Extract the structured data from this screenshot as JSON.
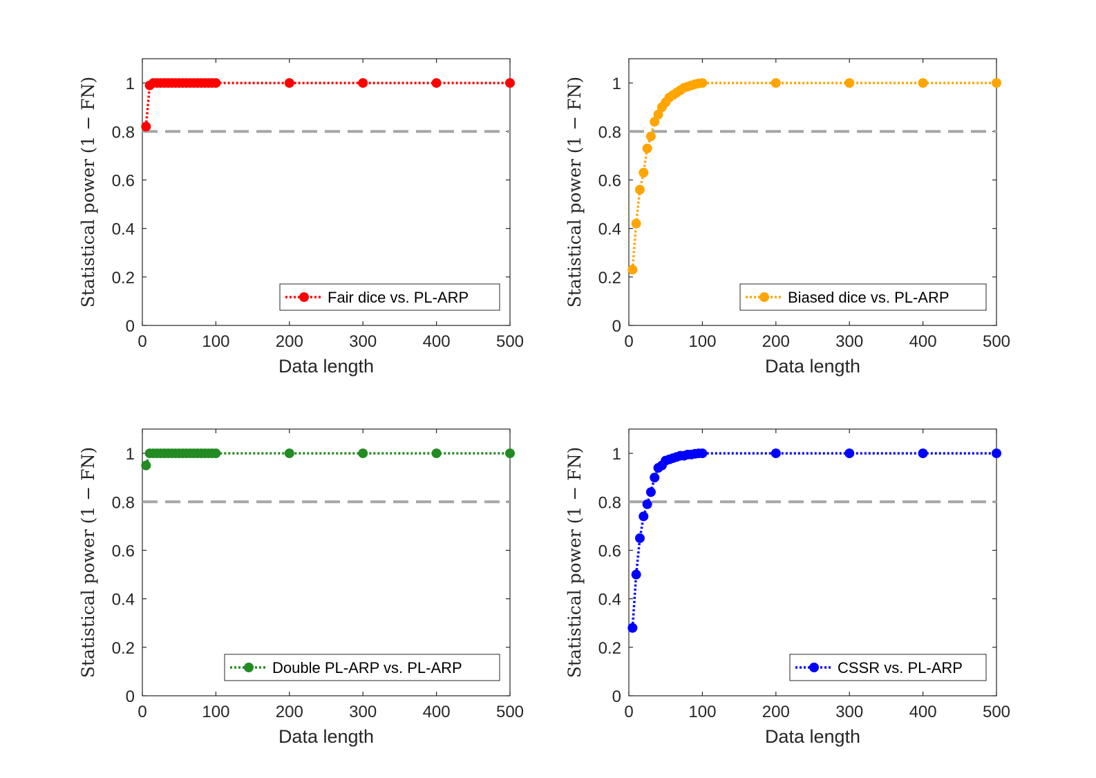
{
  "chart_data": [
    {
      "type": "line",
      "xlabel": "Data length",
      "ylabel": "Statistical power (1 − FN)",
      "xlim": [
        0,
        500
      ],
      "ylim": [
        0,
        1.1
      ],
      "xticks": [
        "0",
        "100",
        "200",
        "300",
        "400",
        "500"
      ],
      "yticks": [
        "0",
        "0.2",
        "0.4",
        "0.6",
        "0.8",
        "1"
      ],
      "threshold": 0.8,
      "legend_position": "bottom-right",
      "series": [
        {
          "name": "Fair dice vs. PL-ARP",
          "color": "#ff0000",
          "x": [
            5,
            10,
            15,
            20,
            25,
            30,
            35,
            40,
            45,
            50,
            55,
            60,
            65,
            70,
            75,
            80,
            85,
            90,
            95,
            100,
            200,
            300,
            400,
            500
          ],
          "y": [
            0.82,
            0.99,
            1,
            1,
            1,
            1,
            1,
            1,
            1,
            1,
            1,
            1,
            1,
            1,
            1,
            1,
            1,
            1,
            1,
            1,
            1,
            1,
            1,
            1
          ]
        }
      ]
    },
    {
      "type": "line",
      "xlabel": "Data length",
      "ylabel": "Statistical power (1 − FN)",
      "xlim": [
        0,
        500
      ],
      "ylim": [
        0,
        1.1
      ],
      "xticks": [
        "0",
        "100",
        "200",
        "300",
        "400",
        "500"
      ],
      "yticks": [
        "0",
        "0.2",
        "0.4",
        "0.6",
        "0.8",
        "1"
      ],
      "threshold": 0.8,
      "legend_position": "bottom-right",
      "series": [
        {
          "name": "Biased dice vs. PL-ARP",
          "color": "#ffa500",
          "x": [
            5,
            10,
            15,
            20,
            25,
            30,
            35,
            40,
            45,
            50,
            55,
            60,
            65,
            70,
            75,
            80,
            85,
            90,
            95,
            100,
            200,
            300,
            400,
            500
          ],
          "y": [
            0.23,
            0.42,
            0.56,
            0.63,
            0.73,
            0.78,
            0.84,
            0.87,
            0.9,
            0.92,
            0.94,
            0.95,
            0.96,
            0.97,
            0.98,
            0.985,
            0.99,
            0.995,
            0.998,
            1,
            1,
            1,
            1,
            1
          ]
        }
      ]
    },
    {
      "type": "line",
      "xlabel": "Data length",
      "ylabel": "Statistical power (1 − FN)",
      "xlim": [
        0,
        500
      ],
      "ylim": [
        0,
        1.1
      ],
      "xticks": [
        "0",
        "100",
        "200",
        "300",
        "400",
        "500"
      ],
      "yticks": [
        "0",
        "0.2",
        "0.4",
        "0.6",
        "0.8",
        "1"
      ],
      "threshold": 0.8,
      "legend_position": "bottom-right",
      "series": [
        {
          "name": "Double PL-ARP vs. PL-ARP",
          "color": "#228b22",
          "x": [
            5,
            10,
            15,
            20,
            25,
            30,
            35,
            40,
            45,
            50,
            55,
            60,
            65,
            70,
            75,
            80,
            85,
            90,
            95,
            100,
            200,
            300,
            400,
            500
          ],
          "y": [
            0.95,
            1,
            1,
            1,
            1,
            1,
            1,
            1,
            1,
            1,
            1,
            1,
            1,
            1,
            1,
            1,
            1,
            1,
            1,
            1,
            1,
            1,
            1,
            1
          ]
        }
      ]
    },
    {
      "type": "line",
      "xlabel": "Data length",
      "ylabel": "Statistical power (1 − FN)",
      "xlim": [
        0,
        500
      ],
      "ylim": [
        0,
        1.1
      ],
      "xticks": [
        "0",
        "100",
        "200",
        "300",
        "400",
        "500"
      ],
      "yticks": [
        "0",
        "0.2",
        "0.4",
        "0.6",
        "0.8",
        "1"
      ],
      "threshold": 0.8,
      "legend_position": "bottom-right",
      "series": [
        {
          "name": "CSSR vs. PL-ARP",
          "color": "#0000ff",
          "x": [
            5,
            10,
            15,
            20,
            25,
            30,
            35,
            40,
            45,
            50,
            55,
            60,
            65,
            70,
            75,
            80,
            85,
            90,
            95,
            100,
            200,
            300,
            400,
            500
          ],
          "y": [
            0.28,
            0.5,
            0.65,
            0.74,
            0.79,
            0.84,
            0.9,
            0.94,
            0.95,
            0.97,
            0.975,
            0.98,
            0.985,
            0.99,
            0.99,
            0.995,
            0.995,
            0.998,
            1,
            1,
            1,
            1,
            1,
            1
          ]
        }
      ]
    }
  ],
  "style": {
    "threshold_color": "#a6a6a6",
    "axis_color": "#262626"
  }
}
